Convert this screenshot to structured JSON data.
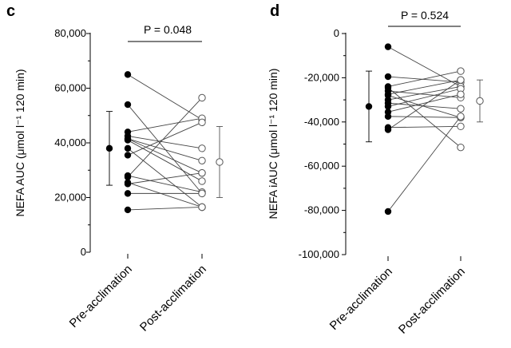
{
  "chart_data": [
    {
      "type": "scatter",
      "panel_label": "c",
      "ylabel": "NEFA AUC (μmol l⁻¹ 120 min)",
      "ylim": [
        0,
        80000
      ],
      "yticks": [
        0,
        20000,
        40000,
        60000,
        80000
      ],
      "ytick_labels": [
        "0",
        "20,000",
        "40,000",
        "60,000",
        "80,000"
      ],
      "categories": [
        "Pre-acclimation",
        "Post-acclimation"
      ],
      "p_value_label": "P = 0.048",
      "pairs": [
        [
          65000,
          48500
        ],
        [
          54000,
          21500
        ],
        [
          44000,
          49000
        ],
        [
          42500,
          38000
        ],
        [
          41500,
          29000
        ],
        [
          41000,
          26000
        ],
        [
          38000,
          16500
        ],
        [
          35500,
          47500
        ],
        [
          28000,
          22000
        ],
        [
          25500,
          16500
        ],
        [
          25000,
          29000
        ],
        [
          21500,
          21500
        ],
        [
          15500,
          16500
        ],
        [
          41500,
          33500
        ],
        [
          27500,
          56500
        ]
      ],
      "pre_summary": {
        "mean": 38000,
        "error_low": 24500,
        "error_high": 51500
      },
      "post_summary": {
        "mean": 33000,
        "error_low": 20000,
        "error_high": 46000
      }
    },
    {
      "type": "scatter",
      "panel_label": "d",
      "ylabel": "NEFA iAUC (μmol l⁻¹ 120 min)",
      "ylim": [
        -100000,
        0
      ],
      "yticks": [
        0,
        -20000,
        -40000,
        -60000,
        -80000,
        -100000
      ],
      "ytick_labels": [
        "0",
        "-20,000",
        "-40,000",
        "-60,000",
        "-80,000",
        "-100,000"
      ],
      "categories": [
        "Pre-acclimation",
        "Post-acclimation"
      ],
      "p_value_label": "P = 0.524",
      "pairs": [
        [
          -6000,
          -24000
        ],
        [
          -19500,
          -22000
        ],
        [
          -24000,
          -17000
        ],
        [
          -26000,
          -29000
        ],
        [
          -27500,
          -21000
        ],
        [
          -28000,
          -38000
        ],
        [
          -30000,
          -24000
        ],
        [
          -31500,
          -34000
        ],
        [
          -33000,
          -25000
        ],
        [
          -35500,
          -27500
        ],
        [
          -37500,
          -38000
        ],
        [
          -42500,
          -42000
        ],
        [
          -43500,
          -21000
        ],
        [
          -80500,
          -37500
        ],
        [
          -24500,
          -51500
        ]
      ],
      "pre_summary": {
        "mean": -33000,
        "error_low": -49000,
        "error_high": -17000
      },
      "post_summary": {
        "mean": -30500,
        "error_low": -40000,
        "error_high": -21000
      }
    }
  ]
}
